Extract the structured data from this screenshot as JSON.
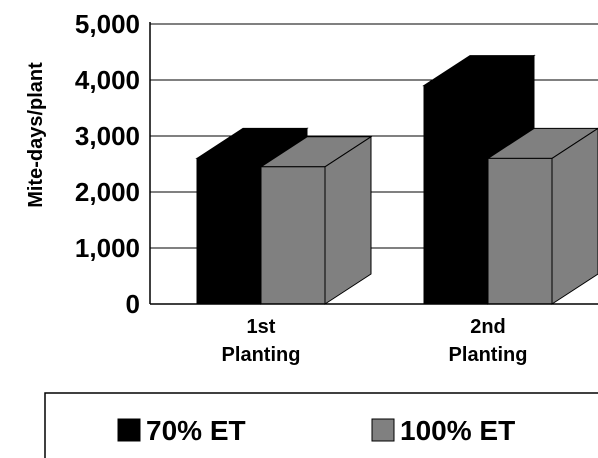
{
  "chart_data": {
    "type": "bar",
    "style": "3d",
    "title": "",
    "xlabel": "",
    "ylabel": "Mite-days/plant",
    "ylim": [
      0,
      5000
    ],
    "yticks": [
      0,
      1000,
      2000,
      3000,
      4000,
      5000
    ],
    "ytick_labels": [
      "0",
      "1,000",
      "2,000",
      "3,000",
      "4,000",
      "5,000"
    ],
    "grid": true,
    "legend_position": "bottom",
    "categories": [
      [
        "1st",
        "Planting"
      ],
      [
        "2nd",
        "Planting"
      ]
    ],
    "series": [
      {
        "name": "70% ET",
        "color": "#000000",
        "values": [
          2600,
          3900
        ]
      },
      {
        "name": "100% ET",
        "color": "#808080",
        "values": [
          2450,
          2600
        ]
      }
    ]
  }
}
